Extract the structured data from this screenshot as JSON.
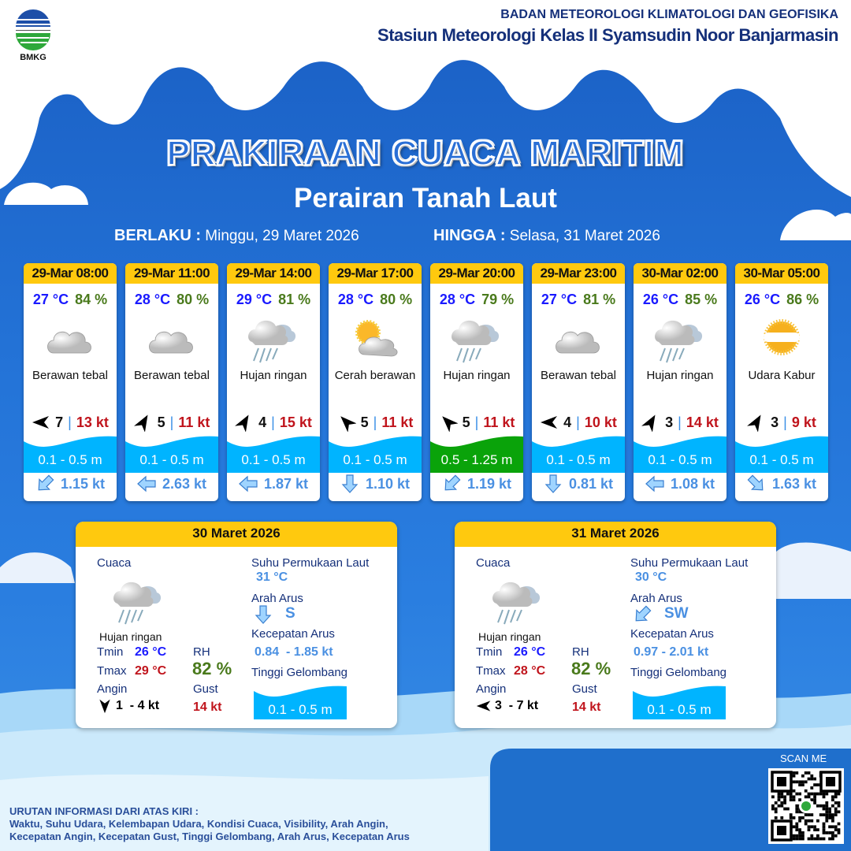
{
  "header": {
    "org": "BADAN METEOROLOGI KLIMATOLOGI DAN GEOFISIKA",
    "station": "Stasiun Meteorologi Kelas II Syamsudin Noor Banjarmasin",
    "logo_text": "BMKG"
  },
  "title": "PRAKIRAAN CUACA MARITIM",
  "subtitle": "Perairan Tanah Laut",
  "validity": {
    "from_label": "BERLAKU :",
    "from": "Minggu, 29 Maret 2026",
    "to_label": "HINGGA :",
    "to": "Selasa, 31 Maret 2026"
  },
  "colors": {
    "header_yellow": "#ffc90e",
    "temp": "#1a1aff",
    "rh": "#4a7a1c",
    "gust": "#c0141c",
    "wave_normal": "#00b4ff",
    "wave_moderate": "#0aa30a",
    "current": "#4a90e2"
  },
  "forecasts": [
    {
      "time": "29-Mar 08:00",
      "temp": "27 °C",
      "rh": "84 %",
      "icon": "cloud-icon",
      "condition": "Berawan tebal",
      "wind_dir": "W",
      "wind": "7",
      "gust": "13 kt",
      "wave": "0.1 - 0.5 m",
      "wave_level": "normal",
      "current_dir": "SW",
      "current": "1.15 kt"
    },
    {
      "time": "29-Mar 11:00",
      "temp": "28 °C",
      "rh": "80 %",
      "icon": "cloud-icon",
      "condition": "Berawan tebal",
      "wind_dir": "NNE",
      "wind": "5",
      "gust": "11 kt",
      "wave": "0.1 - 0.5 m",
      "wave_level": "normal",
      "current_dir": "W",
      "current": "2.63 kt"
    },
    {
      "time": "29-Mar 14:00",
      "temp": "29 °C",
      "rh": "81 %",
      "icon": "rain-cloud-icon",
      "condition": "Hujan ringan",
      "wind_dir": "NNE",
      "wind": "4",
      "gust": "15 kt",
      "wave": "0.1 - 0.5 m",
      "wave_level": "normal",
      "current_dir": "W",
      "current": "1.87 kt"
    },
    {
      "time": "29-Mar 17:00",
      "temp": "28 °C",
      "rh": "80 %",
      "icon": "sun-cloud-icon",
      "condition": "Cerah berawan",
      "wind_dir": "NW",
      "wind": "5",
      "gust": "11 kt",
      "wave": "0.1 - 0.5 m",
      "wave_level": "normal",
      "current_dir": "S",
      "current": "1.10 kt"
    },
    {
      "time": "29-Mar 20:00",
      "temp": "28 °C",
      "rh": "79 %",
      "icon": "rain-cloud-icon",
      "condition": "Hujan ringan",
      "wind_dir": "NW",
      "wind": "5",
      "gust": "11 kt",
      "wave": "0.5 - 1.25 m",
      "wave_level": "moderate",
      "current_dir": "SW",
      "current": "1.19 kt"
    },
    {
      "time": "29-Mar 23:00",
      "temp": "27 °C",
      "rh": "81 %",
      "icon": "cloud-icon",
      "condition": "Berawan tebal",
      "wind_dir": "W",
      "wind": "4",
      "gust": "10 kt",
      "wave": "0.1 - 0.5 m",
      "wave_level": "normal",
      "current_dir": "S",
      "current": "0.81 kt"
    },
    {
      "time": "30-Mar 02:00",
      "temp": "26 °C",
      "rh": "85 %",
      "icon": "rain-cloud-icon",
      "condition": "Hujan ringan",
      "wind_dir": "NNE",
      "wind": "3",
      "gust": "14 kt",
      "wave": "0.1 - 0.5 m",
      "wave_level": "normal",
      "current_dir": "W",
      "current": "1.08 kt"
    },
    {
      "time": "30-Mar 05:00",
      "temp": "26 °C",
      "rh": "86 %",
      "icon": "haze-sun-icon",
      "condition": "Udara Kabur",
      "wind_dir": "NNE",
      "wind": "3",
      "gust": "9 kt",
      "wave": "0.1 - 0.5 m",
      "wave_level": "normal",
      "current_dir": "SE",
      "current": "1.63 kt"
    }
  ],
  "labels": {
    "weather": "Cuaca",
    "sst": "Suhu Permukaan Laut",
    "current_dir": "Arah Arus",
    "current_speed": "Kecepatan Arus",
    "wave": "Tinggi Gelombang",
    "tmin": "Tmin",
    "tmax": "Tmax",
    "rh": "RH",
    "wind": "Angin",
    "gust": "Gust"
  },
  "daily": [
    {
      "date": "30 Maret 2026",
      "icon": "rain-cloud-icon",
      "condition": "Hujan ringan",
      "tmin": "26 °C",
      "tmax": "29 °C",
      "rh": "82 %",
      "wind_dir": "S",
      "wind": "1  - 4 kt",
      "gust": "14 kt",
      "sst": "31 °C",
      "current_dir": "S",
      "current_dir_label": "S",
      "current_speed": "0.84  - 1.85 kt",
      "wave": "0.1 - 0.5 m"
    },
    {
      "date": "31 Maret 2026",
      "icon": "rain-cloud-icon",
      "condition": "Hujan ringan",
      "tmin": "26 °C",
      "tmax": "28 °C",
      "rh": "82 %",
      "wind_dir": "W",
      "wind": "3  - 7 kt",
      "gust": "14 kt",
      "sst": "30 °C",
      "current_dir": "SW",
      "current_dir_label": "SW",
      "current_speed": "0.97 - 2.01 kt",
      "wave": "0.1 - 0.5 m"
    }
  ],
  "footer": {
    "line1": "URUTAN INFORMASI DARI ATAS KIRI :",
    "line2": "Waktu, Suhu Udara, Kelembapan Udara, Kondisi Cuaca, Visibility, Arah Angin,",
    "line3": "Kecepatan Angin, Kecepatan Gust, Tinggi Gelombang, Arah Arus, Kecepatan Arus"
  },
  "qr": {
    "label": "SCAN ME"
  }
}
